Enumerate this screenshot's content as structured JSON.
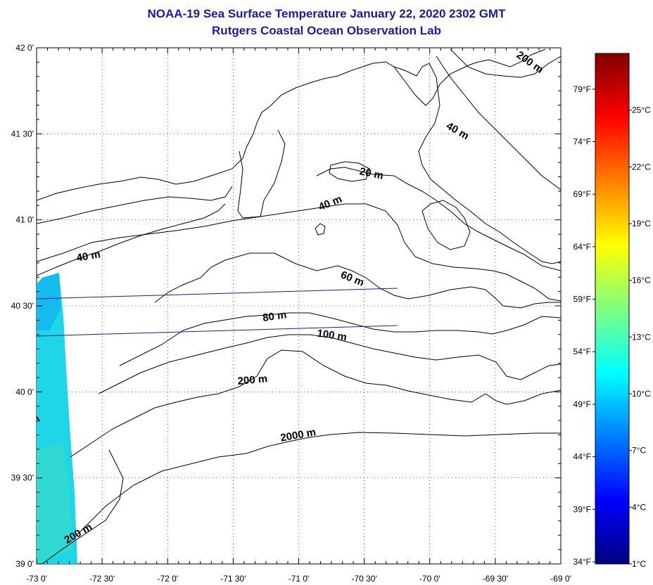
{
  "title": "NOAA-19 Sea Surface Temperature January 22, 2020 2302 GMT",
  "subtitle": "Rutgers Coastal Ocean Observation Lab",
  "map": {
    "lon_range": [
      -73.0,
      -69.0
    ],
    "lat_range": [
      39.0,
      42.0
    ],
    "lat_ticks": [
      {
        "value": 42.0,
        "label": "42 0'"
      },
      {
        "value": 41.5,
        "label": "41 30'"
      },
      {
        "value": 41.0,
        "label": "41 0'"
      },
      {
        "value": 40.5,
        "label": "40 30'"
      },
      {
        "value": 40.0,
        "label": "40 0'"
      },
      {
        "value": 39.5,
        "label": "39 30'"
      },
      {
        "value": 39.0,
        "label": "39 0'"
      }
    ],
    "lon_ticks": [
      {
        "value": -73.0,
        "label": "-73 0'"
      },
      {
        "value": -72.5,
        "label": "-72 30'"
      },
      {
        "value": -72.0,
        "label": "-72 0'"
      },
      {
        "value": -71.5,
        "label": "-71 30'"
      },
      {
        "value": -71.0,
        "label": "-71 0'"
      },
      {
        "value": -70.5,
        "label": "-70 30'"
      },
      {
        "value": -70.0,
        "label": "-70 0'"
      },
      {
        "value": -69.5,
        "label": "-69 30'"
      },
      {
        "value": -69.0,
        "label": "-69 0'"
      }
    ],
    "grid": "dotted",
    "contour_labels": [
      {
        "text": "200 m",
        "lon": -69.25,
        "lat": 41.9,
        "angle": 35
      },
      {
        "text": "40 m",
        "lon": -69.8,
        "lat": 41.5,
        "angle": 30
      },
      {
        "text": "20 m",
        "lon": -70.45,
        "lat": 41.25,
        "angle": 12
      },
      {
        "text": "40 m",
        "lon": -70.75,
        "lat": 41.08,
        "angle": -22
      },
      {
        "text": "40 m",
        "lon": -72.6,
        "lat": 40.77,
        "angle": -10
      },
      {
        "text": "60 m",
        "lon": -70.6,
        "lat": 40.64,
        "angle": 22
      },
      {
        "text": "80 m",
        "lon": -71.18,
        "lat": 40.42,
        "angle": -8
      },
      {
        "text": "100 m",
        "lon": -70.75,
        "lat": 40.31,
        "angle": 8
      },
      {
        "text": "200 m",
        "lon": -71.35,
        "lat": 40.05,
        "angle": -5
      },
      {
        "text": "2000 m",
        "lon": -71.0,
        "lat": 39.73,
        "angle": -10
      },
      {
        "text": "200 m",
        "lon": -72.67,
        "lat": 39.16,
        "angle": -30
      },
      {
        "text": "m",
        "lon": -73.0,
        "lat": 39.82,
        "angle": -30
      }
    ],
    "sst_swath_temp_c": 11
  },
  "colorbar": {
    "celsius": [
      {
        "value": 25,
        "label": "25°C"
      },
      {
        "value": 22,
        "label": "22°C"
      },
      {
        "value": 19,
        "label": "19°C"
      },
      {
        "value": 16,
        "label": "16°C"
      },
      {
        "value": 13,
        "label": "13°C"
      },
      {
        "value": 10,
        "label": "10°C"
      },
      {
        "value": 7,
        "label": "7°C"
      },
      {
        "value": 4,
        "label": "4°C"
      },
      {
        "value": 1,
        "label": "1°C"
      }
    ],
    "fahrenheit": [
      {
        "value": 79,
        "label": "79°F"
      },
      {
        "value": 74,
        "label": "74°F"
      },
      {
        "value": 69,
        "label": "69°F"
      },
      {
        "value": 64,
        "label": "64°F"
      },
      {
        "value": 59,
        "label": "59°F"
      },
      {
        "value": 54,
        "label": "54°F"
      },
      {
        "value": 49,
        "label": "49°F"
      },
      {
        "value": 44,
        "label": "44°F"
      },
      {
        "value": 39,
        "label": "39°F"
      },
      {
        "value": 34,
        "label": "34°F"
      }
    ],
    "range_c": [
      1,
      28
    ],
    "colors": [
      "#00007f",
      "#0000ff",
      "#007fff",
      "#00ffff",
      "#7fff7f",
      "#ffff00",
      "#ff7f00",
      "#ff0000",
      "#7f0000"
    ]
  }
}
